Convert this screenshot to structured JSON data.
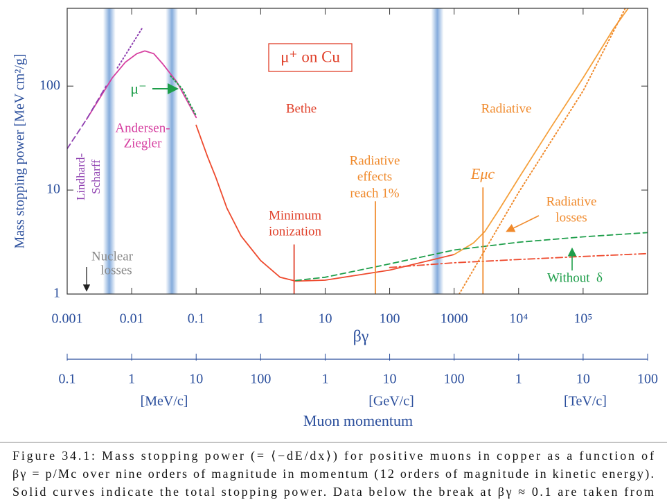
{
  "chart_data": {
    "type": "line",
    "title": "μ⁺ on Cu",
    "xlabel": "βγ",
    "ylabel": "Mass stopping power [MeV cm²/g]",
    "log_x": true,
    "log_y": true,
    "xlim": [
      0.001,
      1000000
    ],
    "ylim": [
      1,
      560
    ],
    "xticks": [
      0.001,
      0.01,
      0.1,
      1,
      10,
      100,
      1000,
      {
        "value": 10000,
        "label": "10⁴"
      },
      {
        "value": 100000,
        "label": "10⁵"
      }
    ],
    "yticks": [
      1,
      10,
      100
    ],
    "x2lim": [
      0.1,
      100000000
    ],
    "x2ticks": [
      0.1,
      1,
      10,
      100,
      {
        "value": 1000,
        "label": "1"
      },
      {
        "value": 10000,
        "label": "10"
      },
      {
        "value": 100000,
        "label": "100"
      },
      {
        "value": 1000000,
        "label": "1"
      },
      {
        "value": 10000000,
        "label": "10"
      },
      {
        "value": 100000000,
        "label": "100"
      }
    ],
    "x2units": [
      "[MeV/c]",
      "[GeV/c]",
      "[TeV/c]"
    ],
    "x2label": "Muon momentum",
    "bands": [
      0.0045,
      0.042,
      550
    ],
    "band_color": "#5b8fd0",
    "series": [
      {
        "color": "#d63fa0",
        "style": "solid",
        "x": [
          0.002,
          0.003,
          0.005,
          0.008,
          0.012,
          0.016,
          0.022,
          0.03,
          0.05,
          0.07,
          0.1
        ],
        "values": [
          48,
          72,
          120,
          170,
          205,
          218,
          205,
          165,
          110,
          75,
          50
        ]
      },
      {
        "color": "#8e3fb0",
        "style": "dashed",
        "x": [
          0.001,
          0.002,
          0.004
        ],
        "values": [
          25,
          48,
          100
        ]
      },
      {
        "color": "#8e3fb0",
        "style": "dotted",
        "x": [
          0.006,
          0.0145
        ],
        "values": [
          150,
          360
        ]
      },
      {
        "color": "#1e9e4a",
        "style": "dotted",
        "x": [
          0.04,
          0.06,
          0.1
        ],
        "values": [
          125,
          95,
          52
        ]
      },
      {
        "color": "#ee4a2e",
        "style": "solid",
        "x": [
          0.1,
          0.15,
          0.2,
          0.3,
          0.5,
          1,
          2,
          3.5,
          10,
          100,
          1000
        ],
        "values": [
          42,
          21,
          13.4,
          6.7,
          3.6,
          2.1,
          1.45,
          1.33,
          1.36,
          1.7,
          2.4
        ]
      },
      {
        "color": "#f5a03c",
        "style": "solid",
        "x": [
          1000,
          2000,
          3000,
          5000,
          10000,
          30000,
          100000,
          300000,
          500000
        ],
        "values": [
          2.4,
          3.1,
          4,
          6.5,
          13,
          38,
          120,
          360,
          560
        ]
      },
      {
        "color": "#1e9e4a",
        "style": "dashed",
        "x": [
          3.5,
          10,
          100,
          1000,
          10000,
          100000,
          1000000
        ],
        "values": [
          1.35,
          1.45,
          1.95,
          2.65,
          3.15,
          3.55,
          3.9
        ]
      },
      {
        "color": "#ee4a2e",
        "style": "dashdot",
        "x": [
          100,
          1000,
          10000,
          100000,
          1000000
        ],
        "values": [
          1.8,
          2,
          2.15,
          2.3,
          2.45
        ]
      },
      {
        "color": "#f08a2c",
        "style": "dotted",
        "x": [
          1200,
          10000,
          100000,
          450000
        ],
        "values": [
          1,
          9.5,
          90,
          560
        ]
      }
    ],
    "markers": [
      {
        "x": 3.3,
        "y": 3,
        "color": "#e0402a"
      },
      {
        "x": 60,
        "y": 7.8,
        "color": "#f08a2c"
      },
      {
        "x": 2800,
        "y": 10.6,
        "color": "#f08a2c"
      }
    ],
    "annotations": {
      "bethe": "Bethe",
      "radiative": "Radiative",
      "andersen_ziegler": [
        "Andersen-",
        "Ziegler"
      ],
      "lindhard_scharff": [
        "Lindhard-",
        "Scharff"
      ],
      "nuclear_losses": [
        "Nuclear",
        "losses"
      ],
      "minimum_ionization": [
        "Minimum",
        "ionization"
      ],
      "radiative_effects": [
        "Radiative",
        "effects",
        "reach 1%"
      ],
      "critical_energy": "Eμc",
      "radiative_losses": [
        "Radiative",
        "losses"
      ],
      "without_delta": "Without  δ",
      "mu_minus": "μ⁻"
    }
  },
  "caption": {
    "lines": [
      "Figure 34.1: Mass stopping power (= ⟨−dE/dx⟩) for positive muons in copper as a function of",
      "βγ = p/Mc over nine orders of magnitude in momentum (12 orders of magnitude in kinetic energy).",
      "Solid curves indicate the total stopping power.  Data below the break at βγ ≈ 0.1 are taken from"
    ]
  }
}
